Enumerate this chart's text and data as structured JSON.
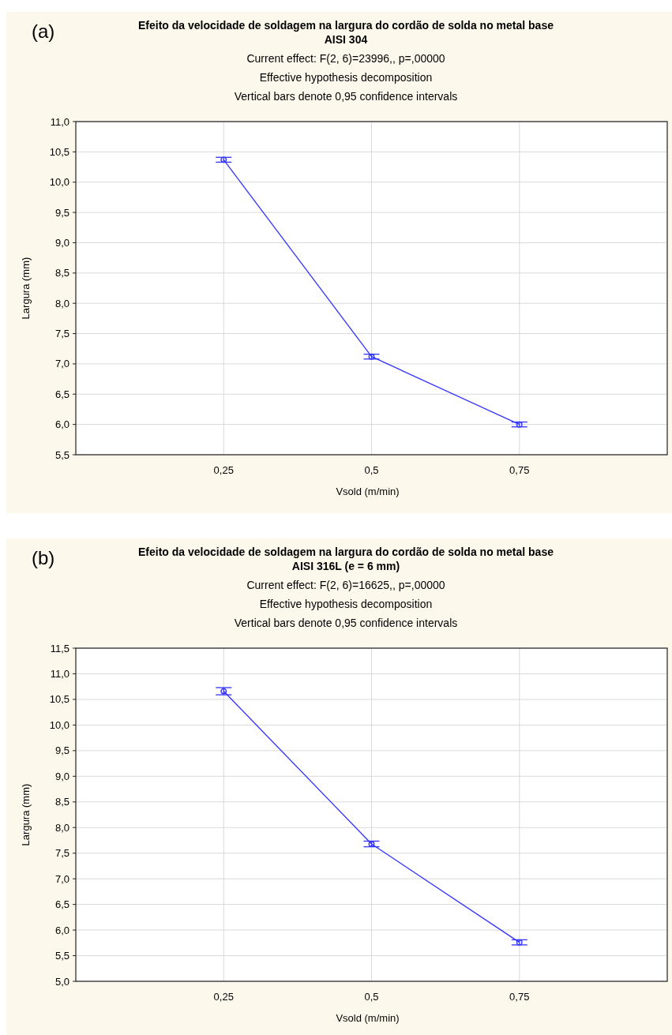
{
  "chart_data": [
    {
      "type": "line",
      "title": "Efeito da velocidade de soldagem na largura do cordão de solda no metal base",
      "subtitle": "AISI 304",
      "annotations": [
        "(a)",
        "Current effect: F(2, 6)=23996,, p=,00000",
        "Effective hypothesis decomposition",
        "Vertical bars denote 0,95 confidence intervals"
      ],
      "xlabel": "Vsold (m/min)",
      "ylabel": "Largura (mm)",
      "categories": [
        "0,25",
        "0,5",
        "0,75"
      ],
      "series": [
        {
          "color": "#3333ff",
          "values": [
            10.37,
            7.12,
            6.0
          ],
          "errors": [
            0.04,
            0.04,
            0.04
          ]
        }
      ],
      "ylim": [
        5.5,
        11.0
      ],
      "yticks": [
        {
          "value": 5.5,
          "label": "5,5"
        },
        {
          "value": 6.0,
          "label": "6,0"
        },
        {
          "value": 6.5,
          "label": "6,5"
        },
        {
          "value": 7.0,
          "label": "7,0"
        },
        {
          "value": 7.5,
          "label": "7,5"
        },
        {
          "value": 8.0,
          "label": "8,0"
        },
        {
          "value": 8.5,
          "label": "8,5"
        },
        {
          "value": 9.0,
          "label": "9,0"
        },
        {
          "value": 9.5,
          "label": "9,5"
        },
        {
          "value": 10.0,
          "label": "10,0"
        },
        {
          "value": 10.5,
          "label": "10,5"
        },
        {
          "value": 11.0,
          "label": "11,0"
        }
      ],
      "grid": true,
      "marker": "circle"
    },
    {
      "type": "line",
      "title": "Efeito da velocidade de soldagem na largura do cordão de solda no metal base",
      "subtitle": "AISI 316L (e = 6 mm)",
      "annotations": [
        "(b)",
        "Current effect: F(2, 6)=16625,, p=,00000",
        "Effective hypothesis decomposition",
        "Vertical bars denote 0,95 confidence intervals"
      ],
      "xlabel": "Vsold (m/min)",
      "ylabel": "Largura (mm)",
      "categories": [
        "0,25",
        "0,5",
        "0,75"
      ],
      "series": [
        {
          "color": "#3333ff",
          "values": [
            10.66,
            7.68,
            5.76
          ],
          "errors": [
            0.07,
            0.055,
            0.05
          ]
        }
      ],
      "ylim": [
        5.0,
        11.5
      ],
      "yticks": [
        {
          "value": 5.0,
          "label": "5,0"
        },
        {
          "value": 5.5,
          "label": "5,5"
        },
        {
          "value": 6.0,
          "label": "6,0"
        },
        {
          "value": 6.5,
          "label": "6,5"
        },
        {
          "value": 7.0,
          "label": "7,0"
        },
        {
          "value": 7.5,
          "label": "7,5"
        },
        {
          "value": 8.0,
          "label": "8,0"
        },
        {
          "value": 8.5,
          "label": "8,5"
        },
        {
          "value": 9.0,
          "label": "9,0"
        },
        {
          "value": 9.5,
          "label": "9,5"
        },
        {
          "value": 10.0,
          "label": "10,0"
        },
        {
          "value": 10.5,
          "label": "10,5"
        },
        {
          "value": 11.0,
          "label": "11,0"
        },
        {
          "value": 11.5,
          "label": "11,5"
        }
      ],
      "grid": true,
      "marker": "circle"
    }
  ]
}
